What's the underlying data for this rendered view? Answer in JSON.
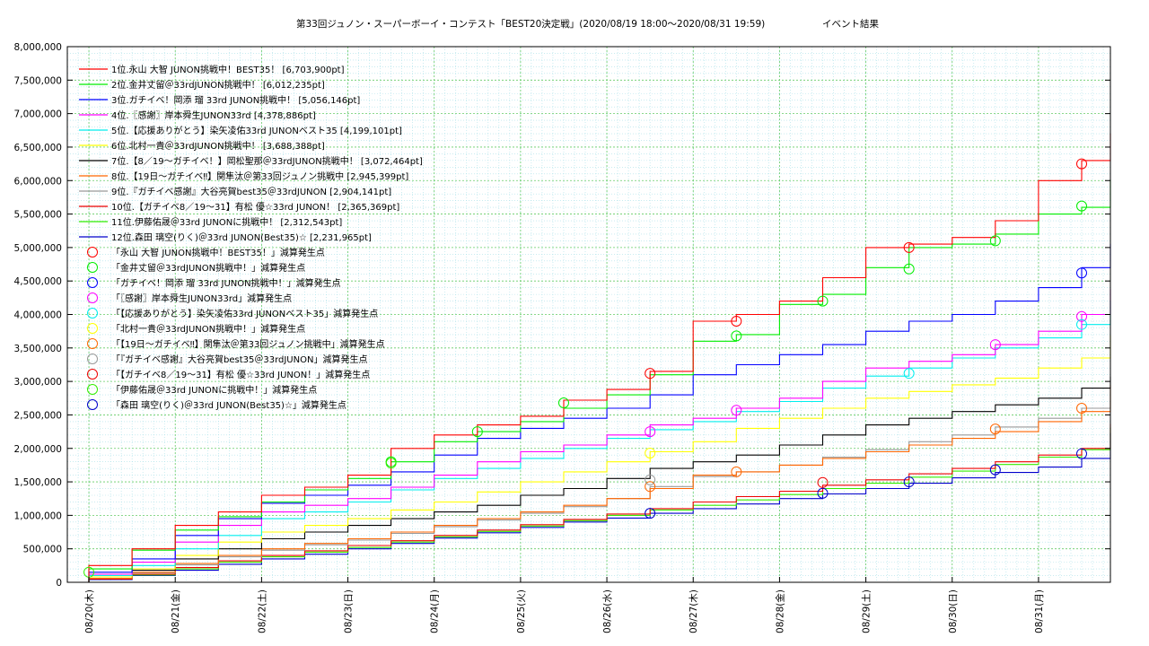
{
  "chart_data": {
    "type": "line",
    "title": "第33回ジュノン・スーパーボーイ・コンテスト「BEST20決定戦」(2020/08/19 18:00〜2020/08/31 19:59)",
    "subtitle": "イベント結果",
    "grid": true,
    "legend_placement": "top-left",
    "xlim": [
      "2020-08-19 18:00",
      "2020-08-31 19:59"
    ],
    "ylim": [
      0,
      8000000
    ],
    "y_ticks": [
      {
        "value": 0,
        "label": "0"
      },
      {
        "value": 500000,
        "label": "500,000"
      },
      {
        "value": 1000000,
        "label": "1,000,000"
      },
      {
        "value": 1500000,
        "label": "1,500,000"
      },
      {
        "value": 2000000,
        "label": "2,000,000"
      },
      {
        "value": 2500000,
        "label": "2,500,000"
      },
      {
        "value": 3000000,
        "label": "3,000,000"
      },
      {
        "value": 3500000,
        "label": "3,500,000"
      },
      {
        "value": 4000000,
        "label": "4,000,000"
      },
      {
        "value": 4500000,
        "label": "4,500,000"
      },
      {
        "value": 5000000,
        "label": "5,000,000"
      },
      {
        "value": 5500000,
        "label": "5,500,000"
      },
      {
        "value": 6000000,
        "label": "6,000,000"
      },
      {
        "value": 6500000,
        "label": "6,500,000"
      },
      {
        "value": 7000000,
        "label": "7,000,000"
      },
      {
        "value": 7500000,
        "label": "7,500,000"
      },
      {
        "value": 8000000,
        "label": "8,000,000"
      }
    ],
    "x_ticks": [
      {
        "value": "2020-08-20",
        "label": "08/20(木)"
      },
      {
        "value": "2020-08-21",
        "label": "08/21(金)"
      },
      {
        "value": "2020-08-22",
        "label": "08/22(土)"
      },
      {
        "value": "2020-08-23",
        "label": "08/23(日)"
      },
      {
        "value": "2020-08-24",
        "label": "08/24(月)"
      },
      {
        "value": "2020-08-25",
        "label": "08/25(火)"
      },
      {
        "value": "2020-08-26",
        "label": "08/26(水)"
      },
      {
        "value": "2020-08-27",
        "label": "08/27(木)"
      },
      {
        "value": "2020-08-28",
        "label": "08/28(金)"
      },
      {
        "value": "2020-08-29",
        "label": "08/29(土)"
      },
      {
        "value": "2020-08-30",
        "label": "08/30(日)"
      },
      {
        "value": "2020-08-31",
        "label": "08/31(月)"
      }
    ],
    "x": [
      "2020-08-19 18:00",
      "2020-08-20 00:00",
      "2020-08-20 12:00",
      "2020-08-21 00:00",
      "2020-08-21 12:00",
      "2020-08-22 00:00",
      "2020-08-22 12:00",
      "2020-08-23 00:00",
      "2020-08-23 12:00",
      "2020-08-24 00:00",
      "2020-08-24 12:00",
      "2020-08-25 00:00",
      "2020-08-25 12:00",
      "2020-08-26 00:00",
      "2020-08-26 12:00",
      "2020-08-27 00:00",
      "2020-08-27 12:00",
      "2020-08-28 00:00",
      "2020-08-28 12:00",
      "2020-08-29 00:00",
      "2020-08-29 12:00",
      "2020-08-30 00:00",
      "2020-08-30 12:00",
      "2020-08-31 00:00",
      "2020-08-31 12:00",
      "2020-08-31 19:59"
    ],
    "series": [
      {
        "name": "1位.永山 大智 JUNON挑戦中！BEST35！ [6,703,900pt]",
        "color": "#ff0000",
        "values": [
          0,
          250000,
          500000,
          850000,
          1050000,
          1300000,
          1420000,
          1600000,
          2000000,
          2200000,
          2350000,
          2480000,
          2720000,
          2880000,
          3150000,
          3900000,
          4000000,
          4200000,
          4550000,
          5000000,
          5050000,
          5150000,
          5400000,
          6000000,
          6300000,
          6703900
        ]
      },
      {
        "name": "2位.金井丈留＠33rdJUNON挑戦中！ [6,012,235pt]",
        "color": "#00ee00",
        "values": [
          0,
          200000,
          480000,
          780000,
          980000,
          1200000,
          1380000,
          1550000,
          1800000,
          2100000,
          2250000,
          2400000,
          2600000,
          2800000,
          3100000,
          3600000,
          3700000,
          4150000,
          4300000,
          4700000,
          5000000,
          5050000,
          5200000,
          5500000,
          5600000,
          6012235
        ]
      },
      {
        "name": "3位.ガチイベ！岡添 瑠 33rd JUNON挑戦中！ [5,056,146pt]",
        "color": "#0000ff",
        "values": [
          0,
          150000,
          350000,
          700000,
          950000,
          1180000,
          1300000,
          1450000,
          1650000,
          1900000,
          2150000,
          2300000,
          2450000,
          2600000,
          2800000,
          3100000,
          3250000,
          3400000,
          3550000,
          3750000,
          3900000,
          4000000,
          4200000,
          4400000,
          4700000,
          5056146
        ]
      },
      {
        "name": "4位.〖感謝〗岸本舜生JUNON33rd [4,378,886pt]",
        "color": "#ff00ff",
        "values": [
          0,
          120000,
          300000,
          600000,
          850000,
          1050000,
          1150000,
          1250000,
          1420000,
          1600000,
          1800000,
          1950000,
          2050000,
          2200000,
          2350000,
          2450000,
          2600000,
          2750000,
          3000000,
          3200000,
          3300000,
          3400000,
          3550000,
          3750000,
          4000000,
          4378886
        ]
      },
      {
        "name": "5位.【応援ありがとう】染矢凌佑33rd JUNONベスト35 [4,199,101pt]",
        "color": "#00eeee",
        "values": [
          0,
          100000,
          250000,
          500000,
          700000,
          950000,
          1050000,
          1200000,
          1380000,
          1550000,
          1700000,
          1850000,
          2000000,
          2150000,
          2280000,
          2400000,
          2550000,
          2700000,
          2900000,
          3080000,
          3200000,
          3350000,
          3500000,
          3650000,
          3850000,
          4199101
        ]
      },
      {
        "name": "6位.北村一貴＠33rdJUNON挑戦中！ [3,688,388pt]",
        "color": "#ffff00",
        "values": [
          0,
          80000,
          200000,
          400000,
          600000,
          750000,
          850000,
          950000,
          1080000,
          1200000,
          1350000,
          1500000,
          1650000,
          1800000,
          1950000,
          2100000,
          2300000,
          2450000,
          2600000,
          2750000,
          2850000,
          2950000,
          3050000,
          3200000,
          3350000,
          3688388
        ]
      },
      {
        "name": "7位.【8／19〜ガチイベ！】岡松聖那＠33rdJUNON挑戦中！ [3,072,464pt]",
        "color": "#000000",
        "values": [
          0,
          80000,
          180000,
          350000,
          500000,
          650000,
          750000,
          850000,
          950000,
          1050000,
          1150000,
          1300000,
          1400000,
          1550000,
          1700000,
          1800000,
          1900000,
          2050000,
          2200000,
          2350000,
          2450000,
          2550000,
          2650000,
          2750000,
          2900000,
          3072464
        ]
      },
      {
        "name": "8位.【19日〜ガチイベ‼】関隼汰＠第33回ジュノン挑戦中 [2,945,399pt]",
        "color": "#ff6600",
        "values": [
          0,
          60000,
          150000,
          280000,
          400000,
          500000,
          580000,
          650000,
          750000,
          850000,
          950000,
          1050000,
          1150000,
          1250000,
          1400000,
          1600000,
          1650000,
          1750000,
          1850000,
          1950000,
          2050000,
          2150000,
          2250000,
          2400000,
          2550000,
          2945399
        ]
      },
      {
        "name": "9位.『ガチイベ感謝』大谷亮賀best35＠33rdJUNON [2,904,141pt]",
        "color": "#999999",
        "values": [
          0,
          60000,
          140000,
          260000,
          380000,
          480000,
          560000,
          630000,
          730000,
          830000,
          930000,
          1030000,
          1130000,
          1250000,
          1430000,
          1580000,
          1650000,
          1750000,
          1870000,
          1980000,
          2100000,
          2200000,
          2320000,
          2450000,
          2600000,
          2904141
        ]
      },
      {
        "name": "10位.【ガチイベ8／19〜31】有松 優☆33rd JUNON！ [2,365,369pt]",
        "color": "#ee0000",
        "values": [
          0,
          50000,
          120000,
          220000,
          320000,
          400000,
          470000,
          550000,
          620000,
          700000,
          780000,
          860000,
          940000,
          1020000,
          1100000,
          1200000,
          1280000,
          1360000,
          1450000,
          1530000,
          1620000,
          1700000,
          1800000,
          1900000,
          2000000,
          2365369
        ]
      },
      {
        "name": "11位.伊藤佑晟＠33rd JUNONに挑戦中！ [2,312,543pt]",
        "color": "#33ee00",
        "values": [
          0,
          50000,
          110000,
          200000,
          300000,
          380000,
          450000,
          520000,
          600000,
          680000,
          760000,
          840000,
          920000,
          1000000,
          1080000,
          1150000,
          1230000,
          1310000,
          1400000,
          1480000,
          1570000,
          1660000,
          1760000,
          1870000,
          1980000,
          2312543
        ]
      },
      {
        "name": "12位.森田 璃空(りく)＠33rd JUNON(Best35)☆ [2,231,965pt]",
        "color": "#0000cc",
        "values": [
          0,
          40000,
          100000,
          180000,
          270000,
          350000,
          420000,
          500000,
          580000,
          660000,
          740000,
          820000,
          900000,
          960000,
          1030000,
          1100000,
          1170000,
          1250000,
          1320000,
          1400000,
          1480000,
          1560000,
          1640000,
          1720000,
          1850000,
          2231965
        ]
      }
    ],
    "markers": [
      {
        "name": "「永山 大智 JUNON挑戦中！BEST35！」減算発生点",
        "color": "#ff0000",
        "points": [
          [
            "2020-08-26 12:00",
            3120000
          ],
          [
            "2020-08-27 12:00",
            3900000
          ],
          [
            "2020-08-29 12:00",
            5000000
          ],
          [
            "2020-08-31 12:00",
            6250000
          ]
        ]
      },
      {
        "name": "「金井丈留＠33rdJUNON挑戦中！」減算発生点",
        "color": "#00ee00",
        "points": [
          [
            "2020-08-23 12:00",
            1800000
          ],
          [
            "2020-08-24 12:00",
            2250000
          ],
          [
            "2020-08-25 12:00",
            2680000
          ],
          [
            "2020-08-27 12:00",
            3680000
          ],
          [
            "2020-08-28 12:00",
            4200000
          ],
          [
            "2020-08-29 12:00",
            4680000
          ],
          [
            "2020-08-30 12:00",
            5100000
          ],
          [
            "2020-08-31 12:00",
            5620000
          ]
        ]
      },
      {
        "name": "「ガチイベ！岡添 瑠 33rd JUNON挑戦中！」減算発生点",
        "color": "#0000ff",
        "points": [
          [
            "2020-08-31 12:00",
            4620000
          ]
        ]
      },
      {
        "name": "「〖感謝〗岸本舜生JUNON33rd」減算発生点",
        "color": "#ff00ff",
        "points": [
          [
            "2020-08-26 12:00",
            2250000
          ],
          [
            "2020-08-27 12:00",
            2570000
          ],
          [
            "2020-08-30 12:00",
            3550000
          ],
          [
            "2020-08-31 12:00",
            3970000
          ]
        ]
      },
      {
        "name": "「【応援ありがとう】染矢凌佑33rd JUNONベスト35」減算発生点",
        "color": "#00eeee",
        "points": [
          [
            "2020-08-29 12:00",
            3120000
          ],
          [
            "2020-08-31 12:00",
            3850000
          ]
        ]
      },
      {
        "name": "「北村一貴＠33rdJUNON挑戦中！」減算発生点",
        "color": "#ffff00",
        "points": [
          [
            "2020-08-26 12:00",
            1930000
          ]
        ]
      },
      {
        "name": "「【19日〜ガチイベ‼】関隼汰＠第33回ジュノン挑戦中」減算発生点",
        "color": "#ff6600",
        "points": [
          [
            "2020-08-26 12:00",
            1430000
          ],
          [
            "2020-08-27 12:00",
            1650000
          ],
          [
            "2020-08-30 12:00",
            2290000
          ],
          [
            "2020-08-31 12:00",
            2600000
          ]
        ]
      },
      {
        "name": "「『ガチイベ感謝』大谷亮賀best35＠33rdJUNON」減算発生点",
        "color": "#999999",
        "points": [
          [
            "2020-08-26 12:00",
            1530000
          ]
        ]
      },
      {
        "name": "「【ガチイベ8／19〜31】有松 優☆33rd JUNON！」減算発生点",
        "color": "#ee0000",
        "points": [
          [
            "2020-08-28 12:00",
            1490000
          ]
        ]
      },
      {
        "name": "「伊藤佑晟＠33rd JUNONに挑戦中！」減算発生点",
        "color": "#33ee00",
        "points": [
          [
            "2020-08-20 00:00",
            150000
          ],
          [
            "2020-08-23 12:00",
            1780000
          ]
        ]
      },
      {
        "name": "「森田 璃空(りく)＠33rd JUNON(Best35)☆」減算発生点",
        "color": "#0000cc",
        "points": [
          [
            "2020-08-26 12:00",
            1030000
          ],
          [
            "2020-08-28 12:00",
            1330000
          ],
          [
            "2020-08-29 12:00",
            1500000
          ],
          [
            "2020-08-30 12:00",
            1680000
          ],
          [
            "2020-08-31 12:00",
            1920000
          ]
        ]
      }
    ]
  }
}
